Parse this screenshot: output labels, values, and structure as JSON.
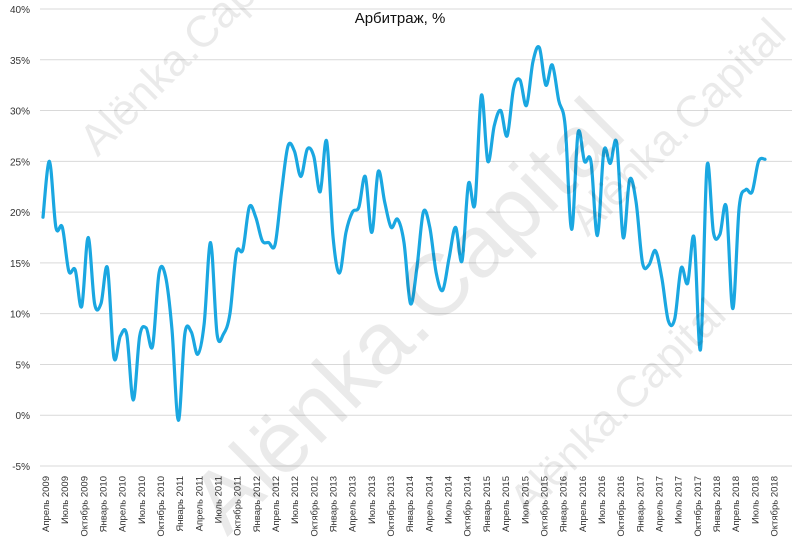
{
  "chart_data": {
    "type": "line",
    "title": "Арбитраж, %",
    "xlabel": "",
    "ylabel": "",
    "ylim": [
      -5,
      40
    ],
    "yticks": [
      "-5%",
      "0%",
      "5%",
      "10%",
      "15%",
      "20%",
      "25%",
      "30%",
      "35%",
      "40%"
    ],
    "xticks": [
      "Апрель 2009",
      "Июль 2009",
      "Октябрь 2009",
      "Январь 2010",
      "Апрель 2010",
      "Июль 2010",
      "Октябрь 2010",
      "Январь 2011",
      "Апрель 2011",
      "Июль 2011",
      "Октябрь 2011",
      "Январь 2012",
      "Апрель 2012",
      "Июль 2012",
      "Октябрь 2012",
      "Январь 2013",
      "Апрель 2013",
      "Июль 2013",
      "Октябрь 2013",
      "Январь 2014",
      "Апрель 2014",
      "Июль 2014",
      "Октябрь 2014",
      "Январь 2015",
      "Апрель 2015",
      "Июль 2015",
      "Октябрь 2015",
      "Январь 2016",
      "Апрель 2016",
      "Июль 2016",
      "Октябрь 2016",
      "Январь 2017",
      "Апрель 2017",
      "Июль 2017",
      "Октябрь 2017",
      "Январь 2018",
      "Апрель 2018",
      "Июль 2018",
      "Октябрь 2018"
    ],
    "grid": true,
    "series": [
      {
        "color": "#1aa7e1",
        "values": [
          19.5,
          25.0,
          18.5,
          18.5,
          14.2,
          14.3,
          10.7,
          17.5,
          11.0,
          11.0,
          14.5,
          5.7,
          7.8,
          7.9,
          1.5,
          7.8,
          8.6,
          6.8,
          14.0,
          13.7,
          8.5,
          -0.5,
          8.0,
          8.2,
          6.0,
          9.0,
          17.0,
          8.0,
          8.0,
          10.0,
          16.0,
          16.3,
          20.5,
          19.5,
          17.2,
          17.0,
          16.8,
          22.0,
          26.5,
          26.0,
          23.5,
          26.2,
          25.5,
          22.0,
          27.0,
          17.5,
          14.0,
          18.0,
          20.0,
          20.5,
          23.5,
          18.0,
          24.0,
          21.0,
          18.5,
          19.3,
          17.0,
          11.0,
          14.5,
          20.0,
          18.5,
          14.0,
          12.3,
          15.5,
          18.5,
          15.2,
          22.8,
          20.8,
          31.5,
          25.0,
          28.5,
          30.0,
          27.5,
          32.2,
          33.0,
          30.5,
          34.8,
          36.2,
          32.5,
          34.5,
          31.0,
          28.5,
          18.3,
          27.8,
          25.0,
          25.0,
          17.7,
          26.0,
          24.8,
          26.8,
          17.5,
          23.2,
          21.0,
          15.0,
          14.8,
          16.2,
          13.5,
          9.3,
          9.5,
          14.5,
          13.0,
          17.5,
          6.5,
          24.5,
          18.0,
          17.8,
          20.5,
          10.5,
          20.5,
          22.2,
          22.0,
          25.0,
          25.2
        ]
      }
    ]
  },
  "watermark": [
    "Alёnka.Capital",
    "Alёnka.Capital",
    "Alёnka.Capital"
  ]
}
